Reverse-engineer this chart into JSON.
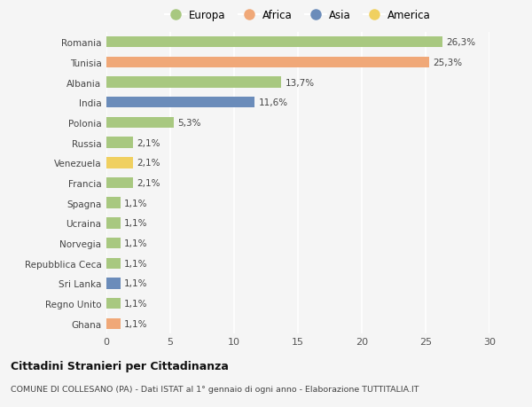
{
  "countries": [
    "Romania",
    "Tunisia",
    "Albania",
    "India",
    "Polonia",
    "Russia",
    "Venezuela",
    "Francia",
    "Spagna",
    "Ucraina",
    "Norvegia",
    "Repubblica Ceca",
    "Sri Lanka",
    "Regno Unito",
    "Ghana"
  ],
  "values": [
    26.3,
    25.3,
    13.7,
    11.6,
    5.3,
    2.1,
    2.1,
    2.1,
    1.1,
    1.1,
    1.1,
    1.1,
    1.1,
    1.1,
    1.1
  ],
  "labels": [
    "26,3%",
    "25,3%",
    "13,7%",
    "11,6%",
    "5,3%",
    "2,1%",
    "2,1%",
    "2,1%",
    "1,1%",
    "1,1%",
    "1,1%",
    "1,1%",
    "1,1%",
    "1,1%",
    "1,1%"
  ],
  "continents": [
    "Europa",
    "Africa",
    "Europa",
    "Asia",
    "Europa",
    "Europa",
    "America",
    "Europa",
    "Europa",
    "Europa",
    "Europa",
    "Europa",
    "Asia",
    "Europa",
    "Africa"
  ],
  "colors": {
    "Europa": "#a8c880",
    "Africa": "#f0a878",
    "Asia": "#6b8cba",
    "America": "#f0d060"
  },
  "legend_order": [
    "Europa",
    "Africa",
    "Asia",
    "America"
  ],
  "xlim": [
    0,
    30
  ],
  "xticks": [
    0,
    5,
    10,
    15,
    20,
    25,
    30
  ],
  "title": "Cittadini Stranieri per Cittadinanza",
  "subtitle": "COMUNE DI COLLESANO (PA) - Dati ISTAT al 1° gennaio di ogni anno - Elaborazione TUTTITALIA.IT",
  "bg_color": "#f5f5f5",
  "grid_color": "#ffffff",
  "bar_height": 0.55
}
